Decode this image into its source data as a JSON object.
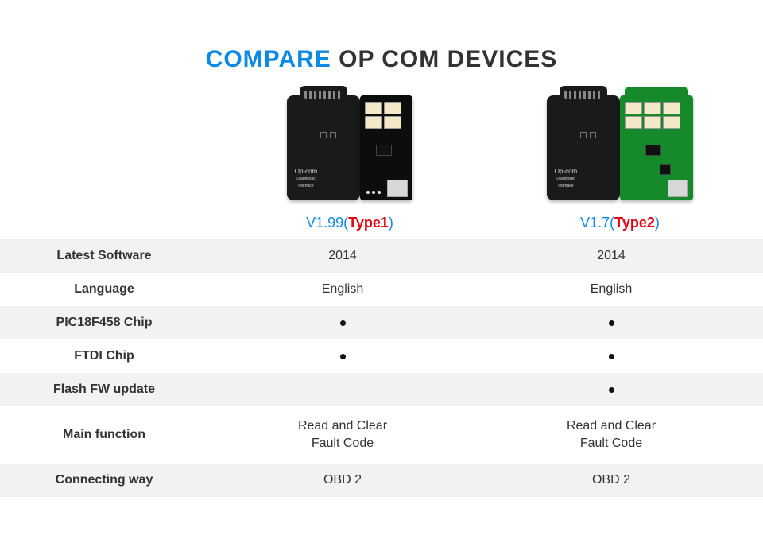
{
  "title": {
    "compare": "COMPARE",
    "rest": " OP COM DEVICES"
  },
  "products": [
    {
      "version": "V1.99",
      "type": "Type1",
      "pcb_style": "black"
    },
    {
      "version": "V1.7",
      "type": "Type2",
      "pcb_style": "green"
    }
  ],
  "rows": [
    {
      "label": "Latest Software",
      "v1": "2014",
      "v2": "2014",
      "alt": true
    },
    {
      "label": "Language",
      "v1": "English",
      "v2": "English",
      "alt": false
    },
    {
      "label": "PIC18F458 Chip",
      "v1": "•",
      "v2": "•",
      "alt": true,
      "bullet": true
    },
    {
      "label": "FTDI Chip",
      "v1": "•",
      "v2": "•",
      "alt": false,
      "bullet": true
    },
    {
      "label": "Flash FW update",
      "v1": "",
      "v2": "•",
      "alt": true,
      "bullet": true
    },
    {
      "label": "Main function",
      "v1": "Read and Clear\nFault Code",
      "v2": "Read and Clear\nFault Code",
      "alt": false,
      "tall": true
    },
    {
      "label": "Connecting way",
      "v1": "OBD 2",
      "v2": "OBD 2",
      "alt": true
    }
  ],
  "colors": {
    "accent_blue": "#0d8ae6",
    "accent_red": "#e60012",
    "row_alt_bg": "#f2f2f2",
    "text": "#333333",
    "pcb_green": "#168a2a",
    "device_black": "#1a1a1a"
  }
}
